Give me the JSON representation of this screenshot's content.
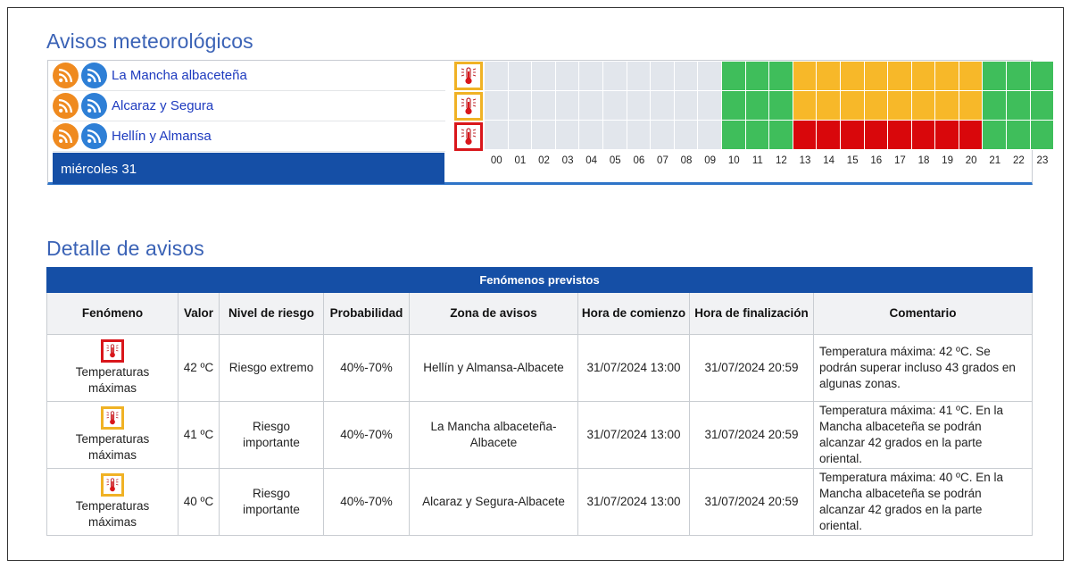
{
  "warnings": {
    "title": "Avisos meteorológicos",
    "zones": [
      {
        "name": "La Mancha albaceteña",
        "level": "yellow",
        "hours": [
          "grey",
          "grey",
          "grey",
          "grey",
          "grey",
          "grey",
          "grey",
          "grey",
          "grey",
          "grey",
          "green",
          "green",
          "green",
          "yellow",
          "yellow",
          "yellow",
          "yellow",
          "yellow",
          "yellow",
          "yellow",
          "yellow",
          "green",
          "green",
          "green"
        ]
      },
      {
        "name": "Alcaraz y Segura",
        "level": "yellow",
        "hours": [
          "grey",
          "grey",
          "grey",
          "grey",
          "grey",
          "grey",
          "grey",
          "grey",
          "grey",
          "grey",
          "green",
          "green",
          "green",
          "yellow",
          "yellow",
          "yellow",
          "yellow",
          "yellow",
          "yellow",
          "yellow",
          "yellow",
          "green",
          "green",
          "green"
        ]
      },
      {
        "name": "Hellín y Almansa",
        "level": "red",
        "hours": [
          "grey",
          "grey",
          "grey",
          "grey",
          "grey",
          "grey",
          "grey",
          "grey",
          "grey",
          "grey",
          "green",
          "green",
          "green",
          "red",
          "red",
          "red",
          "red",
          "red",
          "red",
          "red",
          "red",
          "green",
          "green",
          "green"
        ]
      }
    ],
    "day_label": "miércoles 31",
    "hour_labels": [
      "00",
      "01",
      "02",
      "03",
      "04",
      "05",
      "06",
      "07",
      "08",
      "09",
      "10",
      "11",
      "12",
      "13",
      "14",
      "15",
      "16",
      "17",
      "18",
      "19",
      "20",
      "21",
      "22",
      "23"
    ],
    "icons": {
      "rss_primary": "rss-feed-icon-orange",
      "rss_secondary": "rss-feed-icon-blue",
      "phenomenon": "thermometer-icon"
    },
    "colors": {
      "green": "#3fbe5b",
      "yellow": "#f7b829",
      "red": "#d9070b",
      "grey": "#e2e6ec",
      "header_blue": "#154fa6"
    }
  },
  "detail": {
    "title": "Detalle de avisos",
    "caption": "Fenómenos previstos",
    "columns": [
      "Fenómeno",
      "Valor",
      "Nivel de riesgo",
      "Probabilidad",
      "Zona de avisos",
      "Hora de comienzo",
      "Hora de finalización",
      "Comentario"
    ],
    "rows": [
      {
        "level": "red",
        "phenomenon": "Temperaturas máximas",
        "value": "42 ºC",
        "risk": "Riesgo extremo",
        "probability": "40%-70%",
        "zone": "Hellín y Almansa-Albacete",
        "start": "31/07/2024 13:00",
        "end": "31/07/2024 20:59",
        "comment": "Temperatura máxima: 42 ºC. Se podrán superar incluso 43 grados en algunas zonas."
      },
      {
        "level": "yellow",
        "phenomenon": "Temperaturas máximas",
        "value": "41 ºC",
        "risk": "Riesgo importante",
        "probability": "40%-70%",
        "zone": "La Mancha albaceteña-Albacete",
        "start": "31/07/2024 13:00",
        "end": "31/07/2024 20:59",
        "comment": "Temperatura máxima: 41 ºC. En la Mancha albaceteña se podrán alcanzar 42 grados en la parte oriental."
      },
      {
        "level": "yellow",
        "phenomenon": "Temperaturas máximas",
        "value": "40 ºC",
        "risk": "Riesgo importante",
        "probability": "40%-70%",
        "zone": "Alcaraz y Segura-Albacete",
        "start": "31/07/2024 13:00",
        "end": "31/07/2024 20:59",
        "comment": "Temperatura máxima: 40 ºC. En la Mancha albaceteña se podrán alcanzar 42 grados en la parte oriental."
      }
    ]
  }
}
